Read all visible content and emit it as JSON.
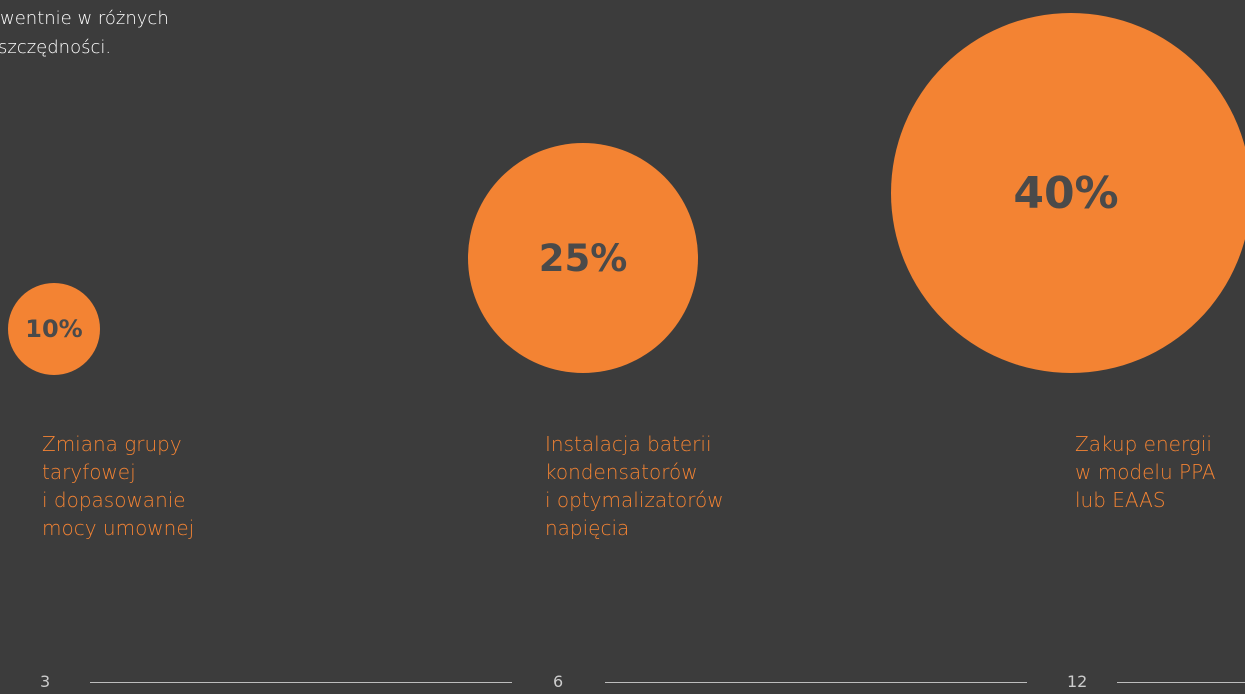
{
  "intro": {
    "line1": "wentnie w różnych",
    "line2": "szczędności."
  },
  "items": [
    {
      "percent": "10%",
      "label_lines": [
        "Zmiana grupy",
        "taryfowej",
        "i dopasowanie",
        "mocy umownej"
      ],
      "step": "3"
    },
    {
      "percent": "25%",
      "label_lines": [
        "Instalacja baterii",
        "kondensatorów",
        "i optymalizatorów",
        "napięcia"
      ],
      "step": "6"
    },
    {
      "percent": "40%",
      "label_lines": [
        "Zakup energii",
        "w modelu PPA",
        "lub EAAS"
      ],
      "step": "12"
    }
  ],
  "colors": {
    "background": "#3c3c3c",
    "accent": "#f38333",
    "percent_text": "#4a4a4a",
    "intro_text": "#ffffff"
  }
}
